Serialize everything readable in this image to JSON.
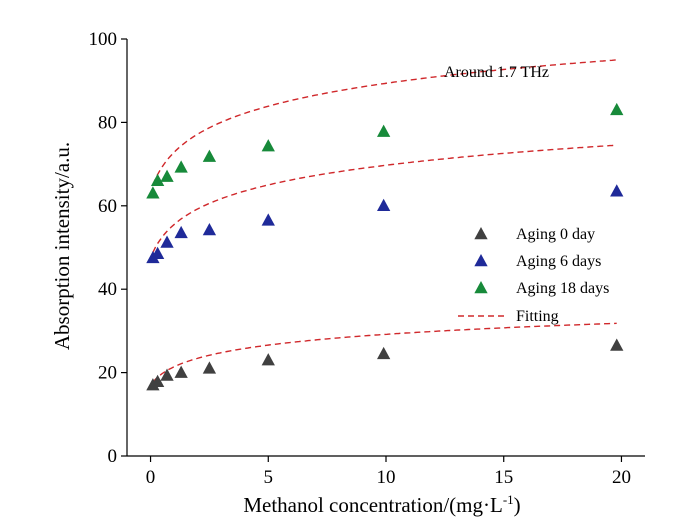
{
  "chart_data": {
    "type": "scatter",
    "title": "",
    "annotation": "Around 1.7 THz",
    "xlabel": "Methanol concentration/(mg·L",
    "xlabel_sup": "-1",
    "xlabel_close": ")",
    "ylabel": "Absorption intensity/a.u.",
    "xlim": [
      -1,
      21
    ],
    "ylim": [
      0,
      100
    ],
    "xticks": [
      0,
      5,
      10,
      15,
      20
    ],
    "yticks": [
      0,
      20,
      40,
      60,
      80,
      100
    ],
    "grid": false,
    "legend_position": "right",
    "series": [
      {
        "name": "Aging 0 day",
        "color": "#404040",
        "marker": "triangle",
        "x": [
          0.1,
          0.3,
          0.7,
          1.3,
          2.5,
          5.0,
          9.9,
          19.8
        ],
        "y": [
          17.0,
          17.8,
          19.3,
          20.0,
          21.0,
          23.0,
          24.5,
          26.5
        ],
        "fit": [
          17.0,
          0.5,
          4.0
        ]
      },
      {
        "name": "Aging 6 days",
        "color": "#1f2a99",
        "marker": "triangle",
        "x": [
          0.1,
          0.3,
          0.7,
          1.3,
          2.5,
          5.0,
          9.9,
          19.8
        ],
        "y": [
          47.5,
          48.5,
          51.2,
          53.5,
          54.2,
          56.5,
          60.0,
          63.5
        ],
        "fit": [
          47.5,
          0.5,
          7.3
        ]
      },
      {
        "name": "Aging 18 days",
        "color": "#178a3a",
        "marker": "triangle",
        "x": [
          0.1,
          0.3,
          0.7,
          1.3,
          2.5,
          5.0,
          9.9,
          19.8
        ],
        "y": [
          63.0,
          66.0,
          67.0,
          69.2,
          71.8,
          74.3,
          77.8,
          83.0
        ],
        "fit": [
          63.5,
          0.5,
          8.5
        ]
      }
    ],
    "fitting": {
      "name": "Fitting",
      "color": "#d0282b"
    }
  }
}
